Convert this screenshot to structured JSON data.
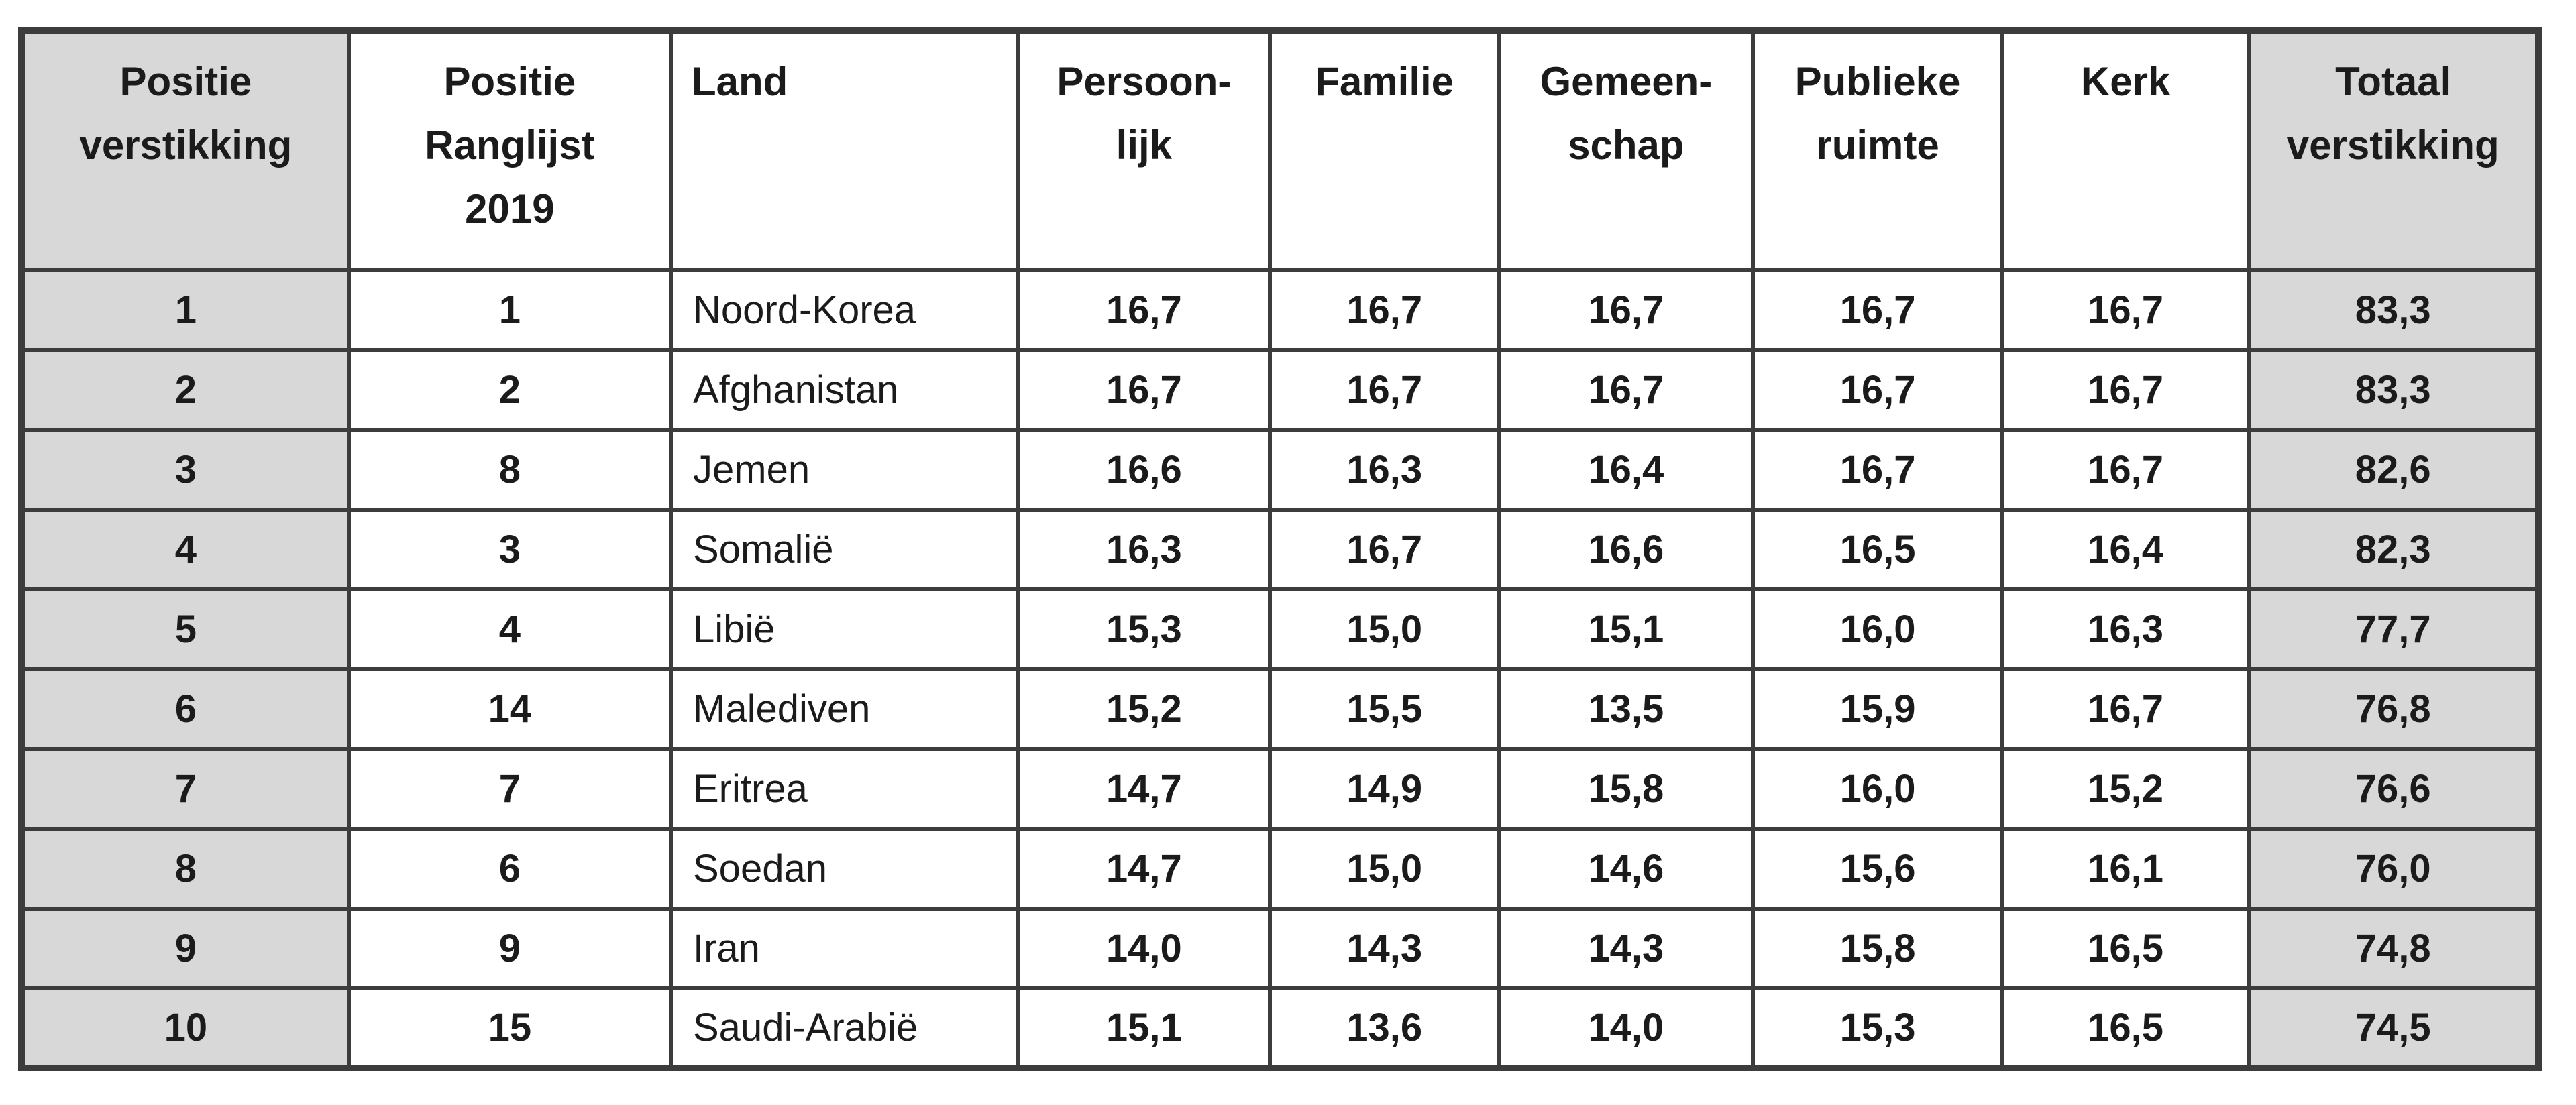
{
  "table": {
    "colors": {
      "shaded_cell_bg": "#d8d8d8",
      "border": "#3c3c3c",
      "text": "#1b1b1b",
      "page_bg": "#ffffff"
    },
    "headers": [
      {
        "id": "positie-verstikking",
        "label": "Positie\nverstikking",
        "shaded": true,
        "align": "center"
      },
      {
        "id": "positie-ranglijst-2019",
        "label": "Positie\nRanglijst\n2019",
        "shaded": false,
        "align": "center"
      },
      {
        "id": "land",
        "label": "Land",
        "shaded": false,
        "align": "left"
      },
      {
        "id": "persoonlijk",
        "label": "Persoon-\nlijk",
        "shaded": false,
        "align": "center"
      },
      {
        "id": "familie",
        "label": "Familie",
        "shaded": false,
        "align": "center"
      },
      {
        "id": "gemeenschap",
        "label": "Gemeen-\nschap",
        "shaded": false,
        "align": "center"
      },
      {
        "id": "publieke-ruimte",
        "label": "Publieke\nruimte",
        "shaded": false,
        "align": "center"
      },
      {
        "id": "kerk",
        "label": "Kerk",
        "shaded": false,
        "align": "center"
      },
      {
        "id": "totaal-verstikking",
        "label": "Totaal\nverstikking",
        "shaded": true,
        "align": "center"
      }
    ],
    "rows": [
      [
        "1",
        "1",
        "Noord-Korea",
        "16,7",
        "16,7",
        "16,7",
        "16,7",
        "16,7",
        "83,3"
      ],
      [
        "2",
        "2",
        "Afghanistan",
        "16,7",
        "16,7",
        "16,7",
        "16,7",
        "16,7",
        "83,3"
      ],
      [
        "3",
        "8",
        "Jemen",
        "16,6",
        "16,3",
        "16,4",
        "16,7",
        "16,7",
        "82,6"
      ],
      [
        "4",
        "3",
        "Somalië",
        "16,3",
        "16,7",
        "16,6",
        "16,5",
        "16,4",
        "82,3"
      ],
      [
        "5",
        "4",
        "Libië",
        "15,3",
        "15,0",
        "15,1",
        "16,0",
        "16,3",
        "77,7"
      ],
      [
        "6",
        "14",
        "Malediven",
        "15,2",
        "15,5",
        "13,5",
        "15,9",
        "16,7",
        "76,8"
      ],
      [
        "7",
        "7",
        "Eritrea",
        "14,7",
        "14,9",
        "15,8",
        "16,0",
        "15,2",
        "76,6"
      ],
      [
        "8",
        "6",
        "Soedan",
        "14,7",
        "15,0",
        "14,6",
        "15,6",
        "16,1",
        "76,0"
      ],
      [
        "9",
        "9",
        "Iran",
        "14,0",
        "14,3",
        "14,3",
        "15,8",
        "16,5",
        "74,8"
      ],
      [
        "10",
        "15",
        "Saudi-Arabië",
        "15,1",
        "13,6",
        "14,0",
        "15,3",
        "16,5",
        "74,5"
      ]
    ]
  }
}
